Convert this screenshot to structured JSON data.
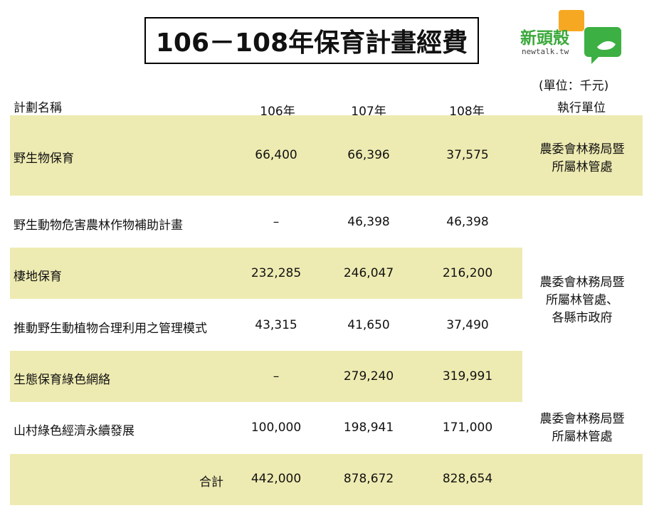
{
  "title": "106－108年保育計畫經費",
  "logo": {
    "name": "新頭殼",
    "domain": "newtalk.tw"
  },
  "unit": "(單位：千元)",
  "headers": {
    "plan": "計劃名稱",
    "y106": "106年",
    "y107": "107年",
    "y108": "108年",
    "agency": "執行單位"
  },
  "rows": [
    {
      "name": "野生物保育",
      "y106": "66,400",
      "y107": "66,396",
      "y108": "37,575"
    },
    {
      "name": "野生動物危害農林作物補助計畫",
      "y106": "–",
      "y107": "46,398",
      "y108": "46,398"
    },
    {
      "name": "棲地保育",
      "y106": "232,285",
      "y107": "246,047",
      "y108": "216,200"
    },
    {
      "name": "推動野生動植物合理利用之管理模式",
      "y106": "43,315",
      "y107": "41,650",
      "y108": "37,490"
    },
    {
      "name": "生態保育綠色網絡",
      "y106": "–",
      "y107": "279,240",
      "y108": "319,991"
    },
    {
      "name": "山村綠色經濟永續發展",
      "y106": "100,000",
      "y107": "198,941",
      "y108": "171,000"
    }
  ],
  "total": {
    "label": "合計",
    "y106": "442,000",
    "y107": "878,672",
    "y108": "828,654"
  },
  "agencies": [
    {
      "line1": "農委會林務局暨",
      "line2": "所屬林管處"
    },
    {
      "line1": "農委會林務局暨",
      "line2": "所屬林管處、",
      "line3": "各縣市政府"
    },
    {
      "line1": "農委會林務局暨",
      "line2": "所屬林管處"
    }
  ],
  "colors": {
    "band": "#eeebb2",
    "logo_green": "#3aa83a",
    "logo_orange": "#f7a823"
  }
}
